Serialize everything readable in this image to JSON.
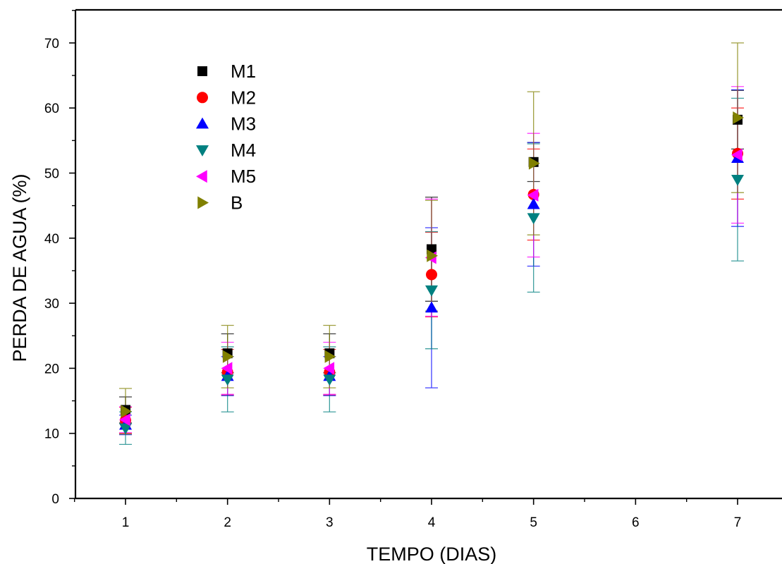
{
  "chart_data": {
    "type": "scatter",
    "title": "",
    "xlabel": "TEMPO (DIAS)",
    "ylabel": "PERDA DE AGUA (%)",
    "xlim": [
      0.5,
      7.4
    ],
    "ylim": [
      0,
      75
    ],
    "xticks": [
      1,
      2,
      3,
      4,
      5,
      6,
      7
    ],
    "yticks": [
      0,
      10,
      20,
      30,
      40,
      50,
      60,
      70
    ],
    "grid": false,
    "legend_position": "upper-left",
    "error_bars": true,
    "series": [
      {
        "name": "M1",
        "marker": "square",
        "color": "#000000",
        "x": [
          1,
          2,
          3,
          4,
          5,
          7
        ],
        "y": [
          13.6,
          22.3,
          22.3,
          38.3,
          51.7,
          58.2
        ],
        "err": [
          2.0,
          3.0,
          3.0,
          8.0,
          3.0,
          4.5
        ]
      },
      {
        "name": "M2",
        "marker": "circle",
        "color": "#ff0000",
        "x": [
          1,
          2,
          3,
          4,
          5,
          7
        ],
        "y": [
          12.0,
          19.4,
          19.4,
          34.4,
          46.7,
          53.0
        ],
        "err": [
          2.0,
          3.5,
          3.5,
          6.5,
          7.0,
          7.0
        ]
      },
      {
        "name": "M3",
        "marker": "triangle-up",
        "color": "#0000ff",
        "x": [
          1,
          2,
          3,
          4,
          5,
          7
        ],
        "y": [
          11.3,
          18.8,
          18.8,
          29.3,
          45.2,
          52.3
        ],
        "err": [
          1.5,
          3.0,
          3.0,
          12.3,
          9.5,
          10.5
        ]
      },
      {
        "name": "M4",
        "marker": "triangle-down",
        "color": "#008080",
        "x": [
          1,
          2,
          3,
          4,
          5,
          7
        ],
        "y": [
          10.8,
          18.3,
          18.3,
          32.0,
          43.1,
          49.0
        ],
        "err": [
          2.5,
          5.0,
          5.0,
          9.0,
          11.4,
          12.5
        ]
      },
      {
        "name": "M5",
        "marker": "triangle-left",
        "color": "#ff00ff",
        "x": [
          1,
          2,
          3,
          4,
          5,
          7
        ],
        "y": [
          12.1,
          20.0,
          20.0,
          37.0,
          46.6,
          52.8
        ],
        "err": [
          2.0,
          4.0,
          4.0,
          9.0,
          9.5,
          10.5
        ]
      },
      {
        "name": "B",
        "marker": "triangle-right",
        "color": "#808000",
        "x": [
          1,
          2,
          3,
          4,
          5,
          7
        ],
        "y": [
          13.4,
          21.8,
          21.8,
          37.3,
          51.5,
          58.5
        ],
        "err": [
          3.5,
          4.8,
          4.8,
          8.5,
          11.0,
          11.5
        ]
      }
    ]
  }
}
